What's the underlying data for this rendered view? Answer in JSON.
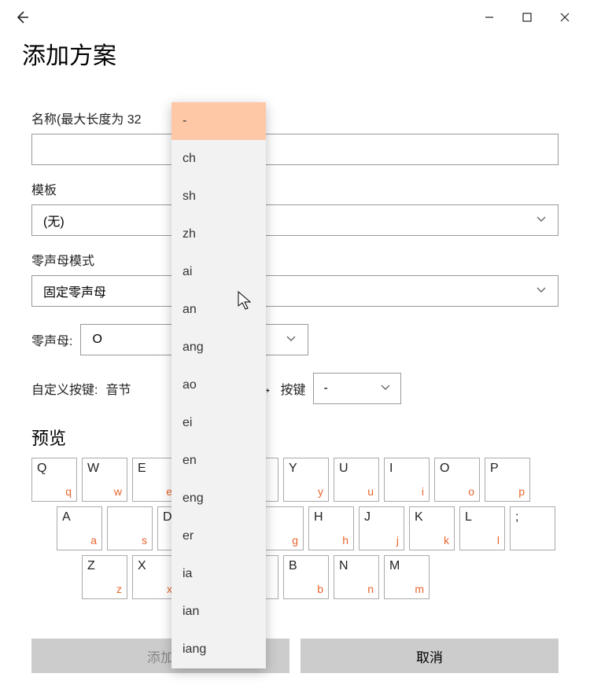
{
  "window": {
    "title": "添加方案"
  },
  "fields": {
    "name_label": "名称(最大长度为 32",
    "name_value": "",
    "template_label": "模板",
    "template_value": "(无)",
    "zero_initial_mode_label": "零声母模式",
    "zero_initial_mode_value": "固定零声母",
    "zero_initial_label": "零声母:",
    "zero_initial_value": "O",
    "custom_key_label": "自定义按键:",
    "syllable_label": "音节",
    "key_label": "按键",
    "key_value": "-"
  },
  "preview": {
    "title": "预览"
  },
  "keyboard": {
    "accent_color": "#e8652e",
    "rows": [
      [
        {
          "main": "Q",
          "sub": "q"
        },
        {
          "main": "W",
          "sub": "w"
        },
        {
          "main": "E",
          "sub": "e"
        },
        {
          "main": "",
          "sub": ""
        },
        {
          "main": "",
          "sub": ""
        },
        {
          "main": "Y",
          "sub": "y"
        },
        {
          "main": "U",
          "sub": "u"
        },
        {
          "main": "I",
          "sub": "i"
        },
        {
          "main": "O",
          "sub": "o"
        },
        {
          "main": "P",
          "sub": "p"
        }
      ],
      [
        {
          "main": "A",
          "sub": "a"
        },
        {
          "main": "",
          "sub": "s"
        },
        {
          "main": "D",
          "sub": ""
        },
        {
          "main": "",
          "sub": ""
        },
        {
          "main": "",
          "sub": "g"
        },
        {
          "main": "H",
          "sub": "h"
        },
        {
          "main": "J",
          "sub": "j"
        },
        {
          "main": "K",
          "sub": "k"
        },
        {
          "main": "L",
          "sub": "l"
        },
        {
          "main": ";",
          "sub": ""
        }
      ],
      [
        {
          "main": "Z",
          "sub": "z"
        },
        {
          "main": "X",
          "sub": "x"
        },
        {
          "main": "",
          "sub": ""
        },
        {
          "main": "",
          "sub": ""
        },
        {
          "main": "B",
          "sub": "b"
        },
        {
          "main": "N",
          "sub": "n"
        },
        {
          "main": "M",
          "sub": "m"
        }
      ]
    ]
  },
  "dropdown": {
    "items": [
      "-",
      "ch",
      "sh",
      "zh",
      "ai",
      "an",
      "ang",
      "ao",
      "ei",
      "en",
      "eng",
      "er",
      "ia",
      "ian",
      "iang"
    ],
    "selected_index": 0
  },
  "footer": {
    "add_label": "添加",
    "cancel_label": "取消"
  }
}
